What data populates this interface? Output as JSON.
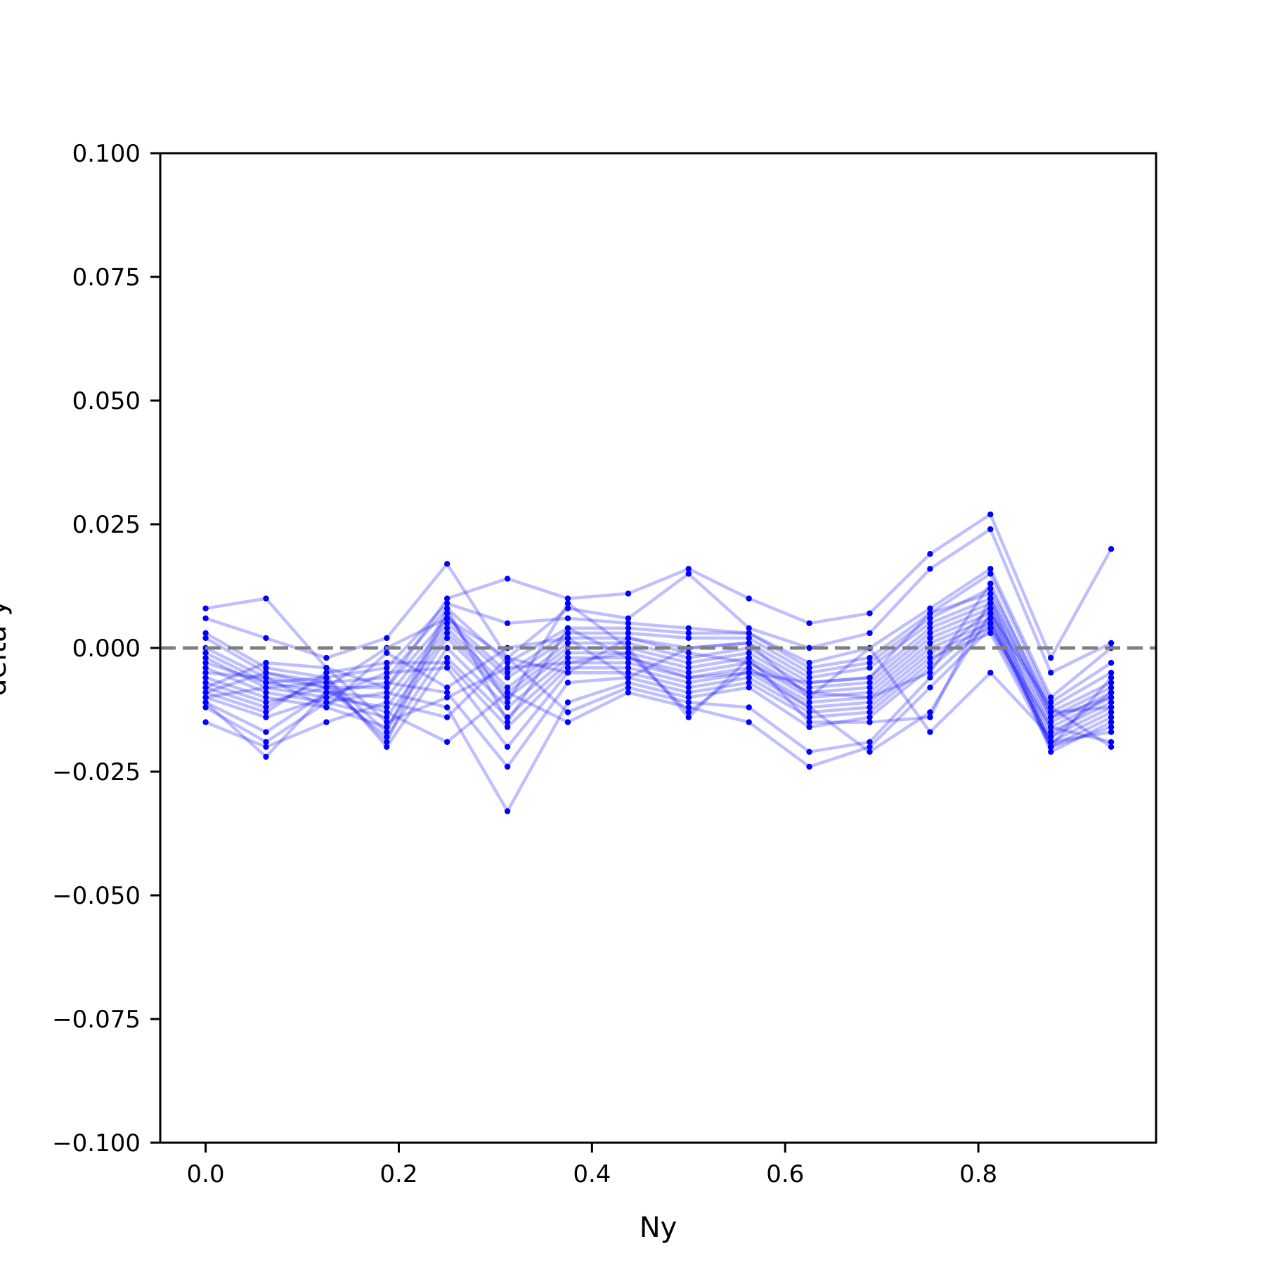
{
  "chart_data": {
    "type": "line",
    "title": "",
    "xlabel": "Ny",
    "ylabel": "delta y",
    "xlim": [
      -0.047,
      0.984
    ],
    "ylim": [
      -0.1,
      0.1
    ],
    "x_ticks": [
      0.0,
      0.2,
      0.4,
      0.6,
      0.8
    ],
    "x_tick_labels": [
      "0.0",
      "0.2",
      "0.4",
      "0.6",
      "0.8"
    ],
    "y_ticks": [
      0.1,
      0.075,
      0.05,
      0.025,
      0.0,
      -0.025,
      -0.05,
      -0.075,
      -0.1
    ],
    "y_tick_labels": [
      "0.100",
      "0.075",
      "0.050",
      "0.025",
      "0.000",
      "−0.025",
      "−0.050",
      "−0.075",
      "−0.100"
    ],
    "grid": false,
    "legend": "none",
    "reference_line": {
      "y": 0.0,
      "style": "dashed",
      "color": "#808080"
    },
    "series_color": "#0000ff",
    "series_alpha": 0.25,
    "x": [
      0.0,
      0.0625,
      0.125,
      0.1875,
      0.25,
      0.3125,
      0.375,
      0.4375,
      0.5,
      0.5625,
      0.625,
      0.6875,
      0.75,
      0.8125,
      0.875,
      0.9375
    ],
    "series": [
      {
        "values": [
          0.008,
          0.01,
          -0.004,
          -0.008,
          0.01,
          0.014,
          0.01,
          0.011,
          0.016,
          0.01,
          0.005,
          0.007,
          0.019,
          0.027,
          -0.002,
          0.02
        ]
      },
      {
        "values": [
          0.006,
          0.002,
          -0.002,
          0.002,
          0.017,
          -0.002,
          0.008,
          0.006,
          0.015,
          0.004,
          0.0,
          0.003,
          0.016,
          0.024,
          -0.005,
          0.001
        ]
      },
      {
        "values": [
          0.003,
          -0.004,
          -0.006,
          -0.004,
          0.009,
          0.005,
          0.006,
          0.005,
          0.004,
          0.003,
          -0.003,
          0.0,
          0.008,
          0.016,
          -0.01,
          0.0
        ]
      },
      {
        "values": [
          0.002,
          -0.005,
          -0.007,
          -0.006,
          0.008,
          -0.003,
          0.004,
          0.004,
          0.003,
          0.003,
          -0.004,
          -0.002,
          0.007,
          0.015,
          -0.011,
          -0.003
        ]
      },
      {
        "values": [
          0.0,
          -0.006,
          -0.008,
          -0.008,
          0.006,
          -0.005,
          0.003,
          0.003,
          0.002,
          0.002,
          -0.005,
          -0.003,
          0.006,
          0.012,
          -0.012,
          -0.005
        ]
      },
      {
        "values": [
          -0.001,
          -0.007,
          -0.009,
          -0.01,
          0.005,
          -0.006,
          0.002,
          0.002,
          0.0,
          0.001,
          -0.006,
          -0.004,
          0.005,
          0.01,
          -0.013,
          -0.007
        ]
      },
      {
        "values": [
          -0.002,
          -0.008,
          -0.01,
          -0.012,
          0.004,
          -0.008,
          0.001,
          0.001,
          -0.002,
          0.0,
          -0.007,
          -0.006,
          0.004,
          0.009,
          -0.014,
          -0.008
        ]
      },
      {
        "values": [
          -0.004,
          -0.009,
          -0.011,
          -0.014,
          0.003,
          -0.009,
          0.0,
          0.0,
          -0.003,
          -0.001,
          -0.008,
          -0.007,
          0.003,
          0.008,
          -0.015,
          -0.009
        ]
      },
      {
        "values": [
          -0.006,
          -0.01,
          -0.012,
          -0.016,
          0.002,
          -0.01,
          -0.001,
          -0.001,
          -0.004,
          -0.002,
          -0.009,
          -0.008,
          0.002,
          0.007,
          -0.016,
          -0.01
        ]
      },
      {
        "values": [
          -0.007,
          -0.011,
          -0.008,
          -0.018,
          0.0,
          -0.012,
          -0.002,
          -0.002,
          -0.005,
          -0.003,
          -0.01,
          -0.009,
          0.001,
          0.006,
          -0.017,
          -0.011
        ]
      },
      {
        "values": [
          -0.008,
          -0.012,
          -0.006,
          -0.02,
          -0.002,
          -0.014,
          -0.003,
          -0.003,
          -0.006,
          -0.004,
          -0.011,
          -0.01,
          0.0,
          0.005,
          -0.018,
          -0.012
        ]
      },
      {
        "values": [
          -0.009,
          -0.013,
          -0.005,
          -0.003,
          -0.003,
          -0.016,
          -0.004,
          -0.004,
          -0.007,
          -0.005,
          -0.012,
          -0.011,
          -0.001,
          0.004,
          -0.019,
          -0.013
        ]
      },
      {
        "values": [
          -0.01,
          -0.014,
          -0.01,
          -0.005,
          -0.004,
          -0.02,
          -0.005,
          -0.005,
          -0.008,
          -0.006,
          -0.013,
          -0.012,
          -0.002,
          0.003,
          -0.02,
          -0.014
        ]
      },
      {
        "values": [
          -0.011,
          -0.017,
          -0.009,
          -0.007,
          -0.009,
          -0.024,
          -0.007,
          -0.006,
          -0.009,
          -0.007,
          -0.014,
          -0.013,
          -0.003,
          0.008,
          -0.021,
          -0.015
        ]
      },
      {
        "values": [
          -0.012,
          -0.019,
          -0.011,
          -0.009,
          -0.012,
          -0.033,
          -0.011,
          -0.007,
          -0.01,
          -0.008,
          -0.016,
          -0.014,
          -0.004,
          0.006,
          -0.02,
          -0.016
        ]
      },
      {
        "values": [
          -0.015,
          -0.02,
          -0.015,
          -0.011,
          -0.014,
          -0.002,
          -0.013,
          -0.008,
          -0.011,
          -0.012,
          -0.021,
          -0.019,
          -0.006,
          0.005,
          -0.019,
          -0.017
        ]
      },
      {
        "values": [
          -0.011,
          -0.022,
          -0.009,
          -0.013,
          -0.019,
          -0.009,
          -0.015,
          -0.009,
          -0.012,
          -0.015,
          -0.024,
          -0.02,
          -0.008,
          0.004,
          -0.016,
          -0.019
        ]
      },
      {
        "values": [
          -0.008,
          -0.003,
          -0.004,
          -0.015,
          -0.01,
          -0.004,
          -0.003,
          -0.001,
          -0.013,
          -0.004,
          -0.012,
          -0.021,
          -0.013,
          0.007,
          -0.012,
          -0.02
        ]
      },
      {
        "values": [
          -0.01,
          -0.008,
          -0.007,
          -0.019,
          0.007,
          -0.011,
          0.009,
          0.0,
          -0.014,
          -0.002,
          -0.015,
          -0.015,
          -0.014,
          0.01,
          -0.02,
          -0.006
        ]
      },
      {
        "values": [
          -0.005,
          -0.006,
          -0.012,
          -0.001,
          -0.008,
          0.0,
          0.002,
          -0.006,
          0.0,
          0.001,
          -0.01,
          0.0,
          -0.017,
          -0.005,
          -0.018,
          -0.009
        ]
      },
      {
        "values": [
          -0.009,
          -0.005,
          -0.008,
          0.0,
          0.006,
          -0.002,
          -0.005,
          0.002,
          -0.001,
          -0.003,
          -0.009,
          -0.01,
          -0.005,
          0.013,
          -0.013,
          -0.012
        ]
      },
      {
        "values": [
          -0.003,
          -0.007,
          -0.006,
          -0.017,
          0.008,
          -0.015,
          0.004,
          -0.002,
          -0.006,
          -0.005,
          -0.007,
          -0.006,
          0.007,
          0.011,
          -0.014,
          -0.01
        ]
      }
    ]
  }
}
